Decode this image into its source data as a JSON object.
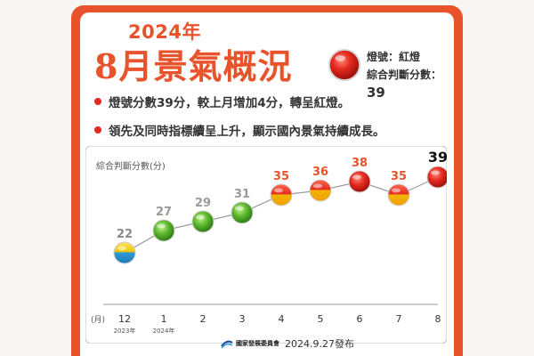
{
  "header": {
    "year_title": "2024年",
    "main_title": "8月景氣概況",
    "signal_label": "燈號：紅燈",
    "score_label": "綜合判斷分數：",
    "score_value": "39"
  },
  "bullets": [
    "燈號分數39分，較上月增加4分，轉呈紅燈。",
    "領先及同時指標續呈上升，顯示國內景氣持續成長。"
  ],
  "chart_data": {
    "type": "line",
    "ylabel": "綜合判斷分數(分)",
    "xlabel": "(月)",
    "categories": [
      "12",
      "1",
      "2",
      "3",
      "4",
      "5",
      "6",
      "7",
      "8"
    ],
    "year_markers": [
      "2023年",
      "2024年",
      "",
      "",
      "",
      "",
      "",
      "",
      ""
    ],
    "values": [
      22,
      27,
      29,
      31,
      35,
      36,
      38,
      35,
      39
    ],
    "light_colors": [
      "yellow-blue",
      "green",
      "green",
      "green",
      "yellow-red",
      "yellow-red",
      "red",
      "yellow-red",
      "red"
    ],
    "ylim": [
      14,
      42
    ]
  },
  "colors": {
    "accent": "#e8532b",
    "red_light": "#e02020",
    "yellow_light": "#f2b500",
    "green_light": "#5cb82e",
    "blue_light": "#2e9bd6"
  },
  "footer": {
    "org": "國家發展委員會",
    "date": "2024.9.27發布"
  }
}
